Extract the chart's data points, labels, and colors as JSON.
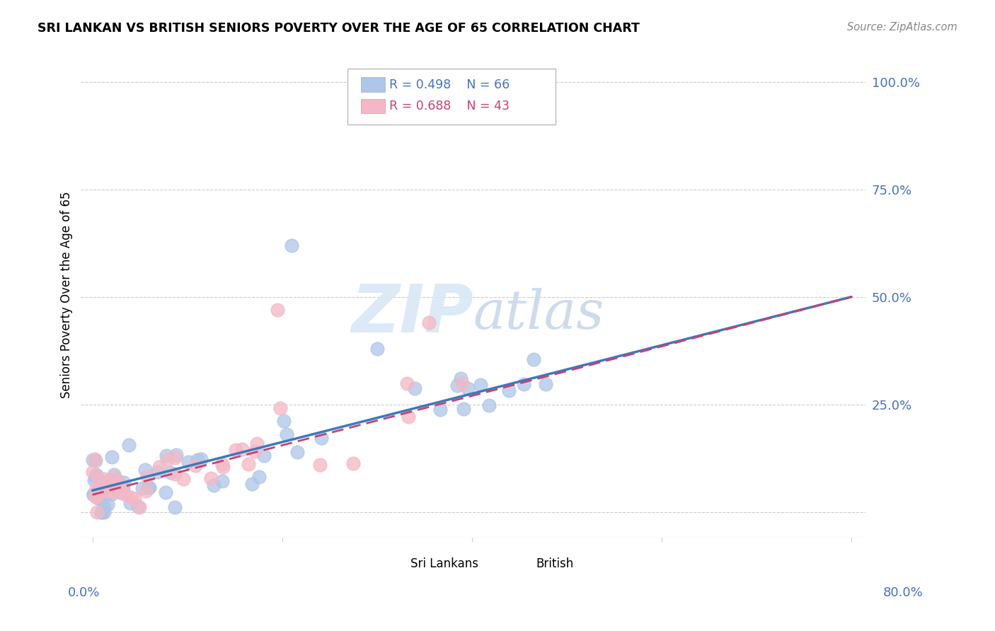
{
  "title": "SRI LANKAN VS BRITISH SENIORS POVERTY OVER THE AGE OF 65 CORRELATION CHART",
  "source": "Source: ZipAtlas.com",
  "ylabel": "Seniors Poverty Over the Age of 65",
  "sri_lankan_R": 0.498,
  "sri_lankan_N": 66,
  "british_R": 0.688,
  "british_N": 43,
  "sri_lankan_color": "#aec6e8",
  "british_color": "#f4b8c4",
  "regression_sri_color": "#3a7abf",
  "regression_brit_color": "#c94070",
  "watermark_color": "#d8e8f5",
  "xmax": 0.8,
  "ytick_positions": [
    0.0,
    0.25,
    0.5,
    0.75,
    1.0
  ],
  "ytick_labels": [
    "",
    "25.0%",
    "50.0%",
    "75.0%",
    "100.0%"
  ],
  "sl_intercept": 0.05,
  "sl_slope": 0.5625,
  "br_intercept": 0.04,
  "br_slope": 0.575,
  "tick_color": "#4472c4"
}
